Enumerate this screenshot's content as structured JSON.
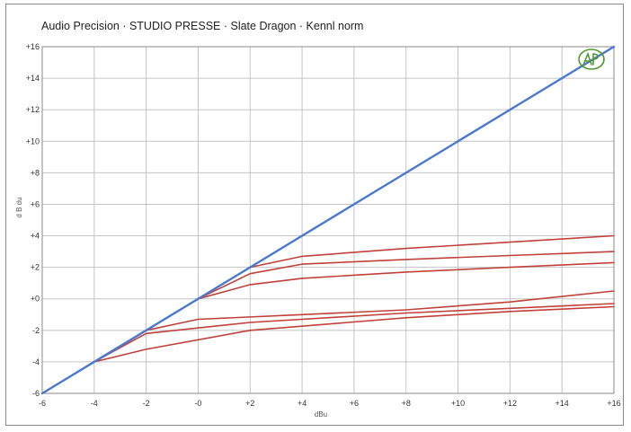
{
  "chart_data": {
    "type": "line",
    "title": "Audio Precision · STUDIO PRESSE · Slate Dragon · Kennl norm",
    "xlabel": "dBu",
    "ylabel": "d B du",
    "xlim": [
      -6,
      16
    ],
    "ylim": [
      -6,
      16
    ],
    "grid": true,
    "x_ticks": [
      "-6",
      "-4",
      "-2",
      "-0",
      "+2",
      "+4",
      "+6",
      "+8",
      "+10",
      "+12",
      "+14",
      "+16"
    ],
    "y_ticks": [
      "+16",
      "+14",
      "+12",
      "+10",
      "+8",
      "+6",
      "+4",
      "+2",
      "+0",
      "-2",
      "-4",
      "-6"
    ],
    "colors": {
      "reference": "#4a78d0",
      "compressed": "#c0413a",
      "grid": "#c4c4c4",
      "logo": "#4f9a2f"
    },
    "series": [
      {
        "values": [
          [
            -6,
            -6
          ],
          [
            2,
            2
          ],
          [
            16,
            16
          ]
        ],
        "color": "#4a78d0"
      },
      {
        "values": [
          [
            -6,
            -6
          ],
          [
            -4,
            -4
          ],
          [
            -2,
            -2
          ],
          [
            0,
            0
          ],
          [
            2,
            2
          ],
          [
            4,
            2.7
          ],
          [
            8,
            3.2
          ],
          [
            12,
            3.6
          ],
          [
            16,
            4.0
          ]
        ],
        "color": "#c0413a"
      },
      {
        "values": [
          [
            -6,
            -6
          ],
          [
            -2,
            -2
          ],
          [
            0,
            0
          ],
          [
            2,
            1.6
          ],
          [
            4,
            2.2
          ],
          [
            8,
            2.5
          ],
          [
            12,
            2.75
          ],
          [
            16,
            3.0
          ]
        ],
        "color": "#c0413a"
      },
      {
        "values": [
          [
            -6,
            -6
          ],
          [
            -2,
            -2
          ],
          [
            0,
            0
          ],
          [
            2,
            0.9
          ],
          [
            4,
            1.3
          ],
          [
            8,
            1.7
          ],
          [
            12,
            2.0
          ],
          [
            16,
            2.3
          ]
        ],
        "color": "#c0413a"
      },
      {
        "values": [
          [
            -6,
            -6
          ],
          [
            -2,
            -2
          ],
          [
            0,
            -1.3
          ],
          [
            4,
            -1.0
          ],
          [
            8,
            -0.7
          ],
          [
            12,
            -0.2
          ],
          [
            16,
            0.5
          ]
        ],
        "color": "#c0413a"
      },
      {
        "values": [
          [
            -6,
            -6
          ],
          [
            -4,
            -4
          ],
          [
            -2,
            -2.2
          ],
          [
            2,
            -1.5
          ],
          [
            8,
            -0.9
          ],
          [
            12,
            -0.6
          ],
          [
            16,
            -0.3
          ]
        ],
        "color": "#c0413a"
      },
      {
        "values": [
          [
            -6,
            -6
          ],
          [
            -4,
            -4
          ],
          [
            -2,
            -3.2
          ],
          [
            2,
            -2.0
          ],
          [
            8,
            -1.2
          ],
          [
            12,
            -0.8
          ],
          [
            16,
            -0.5
          ]
        ],
        "color": "#c0413a"
      }
    ]
  }
}
